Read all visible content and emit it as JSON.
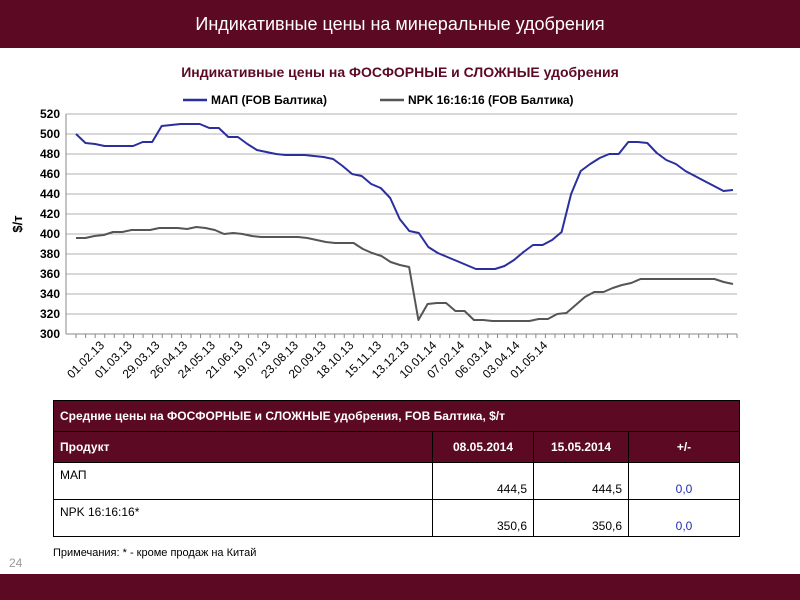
{
  "slide": {
    "title": "Индикативные цены на минеральные удобрения",
    "page_number": "24",
    "note": "Примечания: * - кроме продаж на Китай"
  },
  "colors": {
    "brand": "#5c0a24",
    "series_map": "#2b2f9e",
    "series_npk": "#555555",
    "diff_text": "#1f2fb4"
  },
  "chart_data": {
    "type": "line",
    "title": "Индикативные цены на ФОСФОРНЫЕ и СЛОЖНЫЕ удобрения",
    "ylabel": "$/т",
    "xlabel": "",
    "ylim": [
      300,
      520
    ],
    "yticks": [
      300,
      320,
      340,
      360,
      380,
      400,
      420,
      440,
      460,
      480,
      500,
      520
    ],
    "grid": true,
    "legend": "top",
    "x_tick_labels": [
      "01.02.13",
      "01.03.13",
      "29.03.13",
      "26.04.13",
      "24.05.13",
      "21.06.13",
      "19.07.13",
      "23.08.13",
      "20.09.13",
      "18.10.13",
      "15.11.13",
      "13.12.13",
      "10.01.14",
      "07.02.14",
      "06.03.14",
      "03.04.14",
      "01.05.14"
    ],
    "series": [
      {
        "name": "МАП (FOB Балтика)",
        "color": "#2b2f9e",
        "values": [
          500,
          491,
          490,
          488,
          488,
          488,
          488,
          492,
          492,
          508,
          509,
          510,
          510,
          510,
          506,
          506,
          497,
          497,
          490,
          484,
          482,
          480,
          479,
          479,
          479,
          478,
          477,
          475,
          468,
          460,
          458,
          450,
          446,
          436,
          415,
          403,
          401,
          387,
          381,
          377,
          373,
          369,
          365,
          365,
          365,
          368,
          374,
          382,
          389,
          389,
          394,
          402,
          440,
          463,
          470,
          476,
          480,
          480,
          492,
          492,
          491,
          481,
          474,
          470,
          463,
          458,
          453,
          448,
          443,
          444
        ]
      },
      {
        "name": "NPK 16:16:16 (FOB Балтика)",
        "color": "#555555",
        "values": [
          396,
          396,
          398,
          399,
          402,
          402,
          404,
          404,
          404,
          406,
          406,
          406,
          405,
          407,
          406,
          404,
          400,
          401,
          400,
          398,
          397,
          397,
          397,
          397,
          397,
          396,
          394,
          392,
          391,
          391,
          391,
          385,
          381,
          378,
          372,
          369,
          367,
          314,
          330,
          331,
          331,
          323,
          323,
          314,
          314,
          313,
          313,
          313,
          313,
          313,
          315,
          315,
          320,
          321,
          329,
          337,
          342,
          342,
          346,
          349,
          351,
          355,
          355,
          355,
          355,
          355,
          355,
          355,
          355,
          355,
          352,
          350
        ]
      }
    ]
  },
  "table": {
    "caption": "Средние цены на ФОСФОРНЫЕ и СЛОЖНЫЕ  удобрения, FOB Балтика, $/т",
    "headers": [
      "Продукт",
      "08.05.2014",
      "15.05.2014",
      "+/-"
    ],
    "rows": [
      {
        "product": "МАП",
        "v1": "444,5",
        "v2": "444,5",
        "diff": "0,0"
      },
      {
        "product": "NPK 16:16:16*",
        "v1": "350,6",
        "v2": "350,6",
        "diff": "0,0"
      }
    ]
  }
}
